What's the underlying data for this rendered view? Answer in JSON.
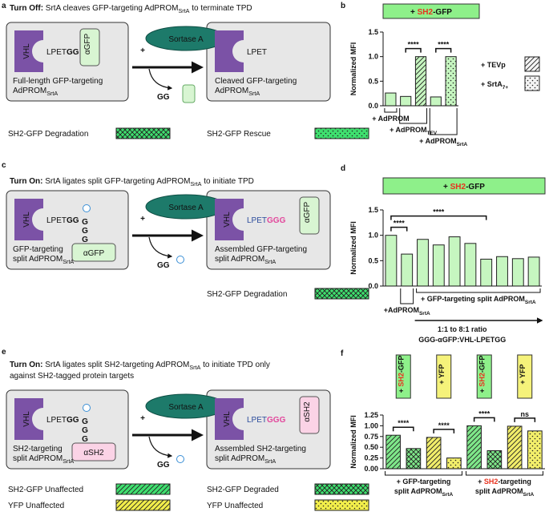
{
  "panels": {
    "a": {
      "letter": "a",
      "title": [
        [
          {
            "text": "Turn Off:",
            "style": "bold"
          },
          {
            "text": " SrtA cleaves GFP-targeting AdPROM"
          },
          {
            "text": "SrtA",
            "style": "sub"
          },
          {
            "text": " to terminate TPD"
          }
        ]
      ],
      "plus": "+",
      "enzyme": "Sortase A",
      "binder_color": "#d8f5d2",
      "left": {
        "vhl": "VHL",
        "motif": [
          {
            "text": "LPET"
          },
          {
            "text": "GG",
            "style": "bold"
          }
        ],
        "binder": "αGFP",
        "caption": [
          [
            {
              "text": "Full-length GFP-targeting"
            }
          ],
          [
            {
              "text": "AdPROM"
            },
            {
              "text": "SrtA",
              "style": "sub"
            }
          ]
        ]
      },
      "right": {
        "motif": [
          {
            "text": "LPET"
          }
        ],
        "caption": [
          [
            {
              "text": "Cleaved GFP-targeting"
            }
          ],
          [
            {
              "text": "AdPROM"
            },
            {
              "text": "SrtA",
              "style": "sub"
            }
          ]
        ]
      },
      "byproduct": "GG",
      "legend": [
        {
          "label": "SH2-GFP Degradation",
          "color": "#3fe06f",
          "pattern": "cross"
        },
        {
          "label": "SH2-GFP Rescue",
          "color": "#3fe06f",
          "pattern": "dots"
        }
      ]
    },
    "c": {
      "letter": "c",
      "title": [
        [
          {
            "text": "Turn On:",
            "style": "bold"
          },
          {
            "text": " SrtA ligates split GFP-targeting AdPROM"
          },
          {
            "text": "SrtA",
            "style": "sub"
          },
          {
            "text": " to initiate TPD"
          }
        ]
      ],
      "plus": "+",
      "enzyme": "Sortase A",
      "binder_color": "#d8f5d2",
      "left": {
        "vhl": "VHL",
        "motif": [
          {
            "text": "LPET"
          },
          {
            "text": "GG",
            "style": "bold"
          }
        ],
        "tag": "GGG",
        "binder": "αGFP",
        "caption": [
          [
            {
              "text": "GFP-targeting"
            }
          ],
          [
            {
              "text": "split AdPROM"
            },
            {
              "text": "SrtA",
              "style": "sub"
            }
          ]
        ]
      },
      "right": {
        "vhl": "VHL",
        "motif": [
          {
            "text": "LPET",
            "style": "blue"
          },
          {
            "text": "GGG",
            "style": "pink"
          }
        ],
        "binder": "αGFP",
        "caption": [
          [
            {
              "text": "Assembled GFP-targeting"
            }
          ],
          [
            {
              "text": "split AdPROM"
            },
            {
              "text": "SrtA",
              "style": "sub"
            }
          ]
        ]
      },
      "byproduct": "GG",
      "legend": [
        {
          "label": "SH2-GFP Degradation",
          "color": "#3fe06f",
          "pattern": "cross"
        }
      ]
    },
    "e": {
      "letter": "e",
      "title": [
        [
          {
            "text": "Turn On:",
            "style": "bold"
          },
          {
            "text": " SrtA ligates split SH2-targeting AdPROM"
          },
          {
            "text": "SrtA",
            "style": "sub"
          },
          {
            "text": " to initiate TPD only"
          }
        ],
        [
          {
            "text": "against SH2-tagged protein targets"
          }
        ]
      ],
      "plus": "+",
      "enzyme": "Sortase A",
      "binder_color": "#fbd3e6",
      "left": {
        "vhl": "VHL",
        "motif": [
          {
            "text": "LPET"
          },
          {
            "text": "GG",
            "style": "bold"
          }
        ],
        "tag": "GGG",
        "binder": "αSH2",
        "caption": [
          [
            {
              "text": "SH2-targeting"
            }
          ],
          [
            {
              "text": "split AdPROM"
            },
            {
              "text": "SrtA",
              "style": "sub"
            }
          ]
        ]
      },
      "right": {
        "vhl": "VHL",
        "motif": [
          {
            "text": "LPET",
            "style": "blue"
          },
          {
            "text": "GGG",
            "style": "pink"
          }
        ],
        "binder": "αSH2",
        "caption": [
          [
            {
              "text": "Assembled SH2-targeting"
            }
          ],
          [
            {
              "text": "split AdPROM"
            },
            {
              "text": "SrtA",
              "style": "sub"
            }
          ]
        ]
      },
      "byproduct": "GG",
      "legend": [
        {
          "label": "SH2-GFP Unaffected",
          "color": "#3fe06f",
          "pattern": "hatch"
        },
        {
          "label": "YFP Unaffected",
          "color": "#f2ee4a",
          "pattern": "hatch"
        },
        {
          "label": "SH2-GFP Degraded",
          "color": "#3fe06f",
          "pattern": "cross"
        },
        {
          "label": "YFP Unaffected",
          "color": "#f2ee4a",
          "pattern": "dots"
        }
      ]
    }
  },
  "chart_data": [
    {
      "letter": "b",
      "type": "bar",
      "title": [
        {
          "text": "+ "
        },
        {
          "text": "SH2",
          "style": "red"
        },
        {
          "text": "-GFP"
        }
      ],
      "title_color": "#8ef08a",
      "y_label": "Normalized MFI",
      "ylim": [
        0,
        1.5
      ],
      "yticks": [
        {
          "value": 0,
          "label": "0.0"
        },
        0.5,
        {
          "value": 1,
          "label": "1.0"
        },
        1.5
      ],
      "values": [
        0.26,
        0.19,
        1.0,
        0.18,
        1.0
      ],
      "colors": [
        "#c6f6c0",
        "#c6f6c0",
        "#c6f6c0",
        "#c6f6c0",
        "#c6f6c0"
      ],
      "patterns": [
        "solid",
        "solid",
        "hatch",
        "solid",
        "dots"
      ],
      "annotations": [
        {
          "text": "****",
          "bars": [
            1,
            2
          ]
        },
        {
          "text": "****",
          "bars": [
            3,
            4
          ]
        }
      ],
      "groups": [
        {
          "lines": [
            [
              {
                "text": "+ AdPROM"
              }
            ]
          ],
          "bars": [
            0,
            0
          ]
        },
        {
          "lines": [
            [
              {
                "text": "+ AdPROM"
              },
              {
                "text": "TEV",
                "style": "sub"
              }
            ]
          ],
          "bars": [
            1,
            2
          ]
        },
        {
          "lines": [
            [
              {
                "text": "+ AdPROM"
              },
              {
                "text": "SrtA",
                "style": "sub"
              }
            ]
          ],
          "bars": [
            3,
            4
          ]
        }
      ],
      "legend": [
        {
          "label": [
            {
              "text": "+ TEVp"
            }
          ],
          "color": "#f4f4f4",
          "pattern": "hatch"
        },
        {
          "label": [
            {
              "text": "+ SrtA"
            },
            {
              "text": "7+",
              "style": "sub"
            }
          ],
          "color": "#f4f4f4",
          "pattern": "dots"
        }
      ]
    },
    {
      "letter": "d",
      "type": "bar",
      "title": [
        {
          "text": "+ "
        },
        {
          "text": "SH2",
          "style": "red"
        },
        {
          "text": "-GFP"
        }
      ],
      "title_color": "#8ef08a",
      "y_label": "Normalized MFI",
      "ylim": [
        0,
        1.5
      ],
      "yticks": [
        {
          "value": 0,
          "label": "0.0"
        },
        0.5,
        {
          "value": 1,
          "label": "1.0"
        },
        1.5
      ],
      "values": [
        1.0,
        0.63,
        0.92,
        0.81,
        0.97,
        0.84,
        0.53,
        0.58,
        0.54,
        0.57
      ],
      "colors": [
        "#c6f6c0",
        "#c6f6c0",
        "#c6f6c0",
        "#c6f6c0",
        "#c6f6c0",
        "#c6f6c0",
        "#c6f6c0",
        "#c6f6c0",
        "#c6f6c0",
        "#c6f6c0"
      ],
      "patterns": [
        "solid",
        "solid",
        "solid",
        "solid",
        "solid",
        "solid",
        "solid",
        "solid",
        "solid",
        "solid"
      ],
      "annotations": [
        {
          "text": "****",
          "bars": [
            0,
            1
          ]
        },
        {
          "text": "****",
          "bars": [
            0,
            6
          ]
        }
      ],
      "groups": [
        {
          "lines": [
            [
              {
                "text": "+AdPROM"
              },
              {
                "text": "SrtA",
                "style": "sub"
              }
            ]
          ],
          "bars": [
            1,
            1
          ]
        },
        {
          "lines": [
            [
              {
                "text": "+ GFP-targeting split AdPROM"
              },
              {
                "text": "SrtA",
                "style": "sub"
              }
            ]
          ],
          "bars": [
            2,
            9
          ]
        }
      ],
      "notes": [
        [
          {
            "text": "1:1 to 8:1 ratio"
          }
        ],
        [
          {
            "text": "GGG-αGFP:VHL-LPETGG"
          }
        ]
      ]
    },
    {
      "letter": "f",
      "type": "bar",
      "y_label": "Normalized MFI",
      "ylim": [
        0,
        1.25
      ],
      "yticks": [
        {
          "value": 0,
          "label": "0.00"
        },
        0.25,
        {
          "value": 0.5,
          "label": "0.50"
        },
        0.75,
        {
          "value": 1,
          "label": "1.00"
        },
        1.25
      ],
      "values": [
        0.78,
        0.47,
        0.73,
        0.25,
        1.0,
        0.42,
        0.99,
        0.88
      ],
      "colors": [
        "#7fe88a",
        "#7fe88a",
        "#f2ee6a",
        "#f2ee6a",
        "#7fe88a",
        "#7fe88a",
        "#f2ee6a",
        "#f2ee6a"
      ],
      "patterns": [
        "hatch",
        "cross",
        "hatch",
        "dots",
        "hatch",
        "cross",
        "hatch",
        "dots"
      ],
      "annotations": [
        {
          "text": "****",
          "bars": [
            0,
            1
          ]
        },
        {
          "text": "****",
          "bars": [
            2,
            3
          ]
        },
        {
          "text": "****",
          "bars": [
            4,
            5
          ]
        },
        {
          "text": "ns",
          "bars": [
            6,
            7
          ]
        }
      ],
      "tags": [
        {
          "label": [
            {
              "text": "+ "
            },
            {
              "text": "SH2",
              "style": "red"
            },
            {
              "text": "-GFP"
            }
          ],
          "color": "#8ef08a",
          "bars": [
            0,
            1
          ]
        },
        {
          "label": [
            {
              "text": "+ YFP"
            }
          ],
          "color": "#f5f27a",
          "bars": [
            2,
            3
          ]
        },
        {
          "label": [
            {
              "text": "+ "
            },
            {
              "text": "SH2",
              "style": "red"
            },
            {
              "text": "-GFP"
            }
          ],
          "color": "#8ef08a",
          "bars": [
            4,
            5
          ]
        },
        {
          "label": [
            {
              "text": "+ YFP"
            }
          ],
          "color": "#f5f27a",
          "bars": [
            6,
            7
          ]
        }
      ],
      "groups": [
        {
          "lines": [
            [
              {
                "text": "+ GFP-targeting"
              }
            ],
            [
              {
                "text": "split AdPROM"
              },
              {
                "text": "SrtA",
                "style": "sub"
              }
            ]
          ],
          "bars": [
            0,
            3
          ]
        },
        {
          "lines": [
            [
              {
                "text": "+ "
              },
              {
                "text": "SH2",
                "style": "red"
              },
              {
                "text": "-targeting"
              }
            ],
            [
              {
                "text": "split AdPROM"
              },
              {
                "text": "SrtA",
                "style": "sub"
              }
            ]
          ],
          "bars": [
            4,
            7
          ]
        }
      ]
    }
  ]
}
